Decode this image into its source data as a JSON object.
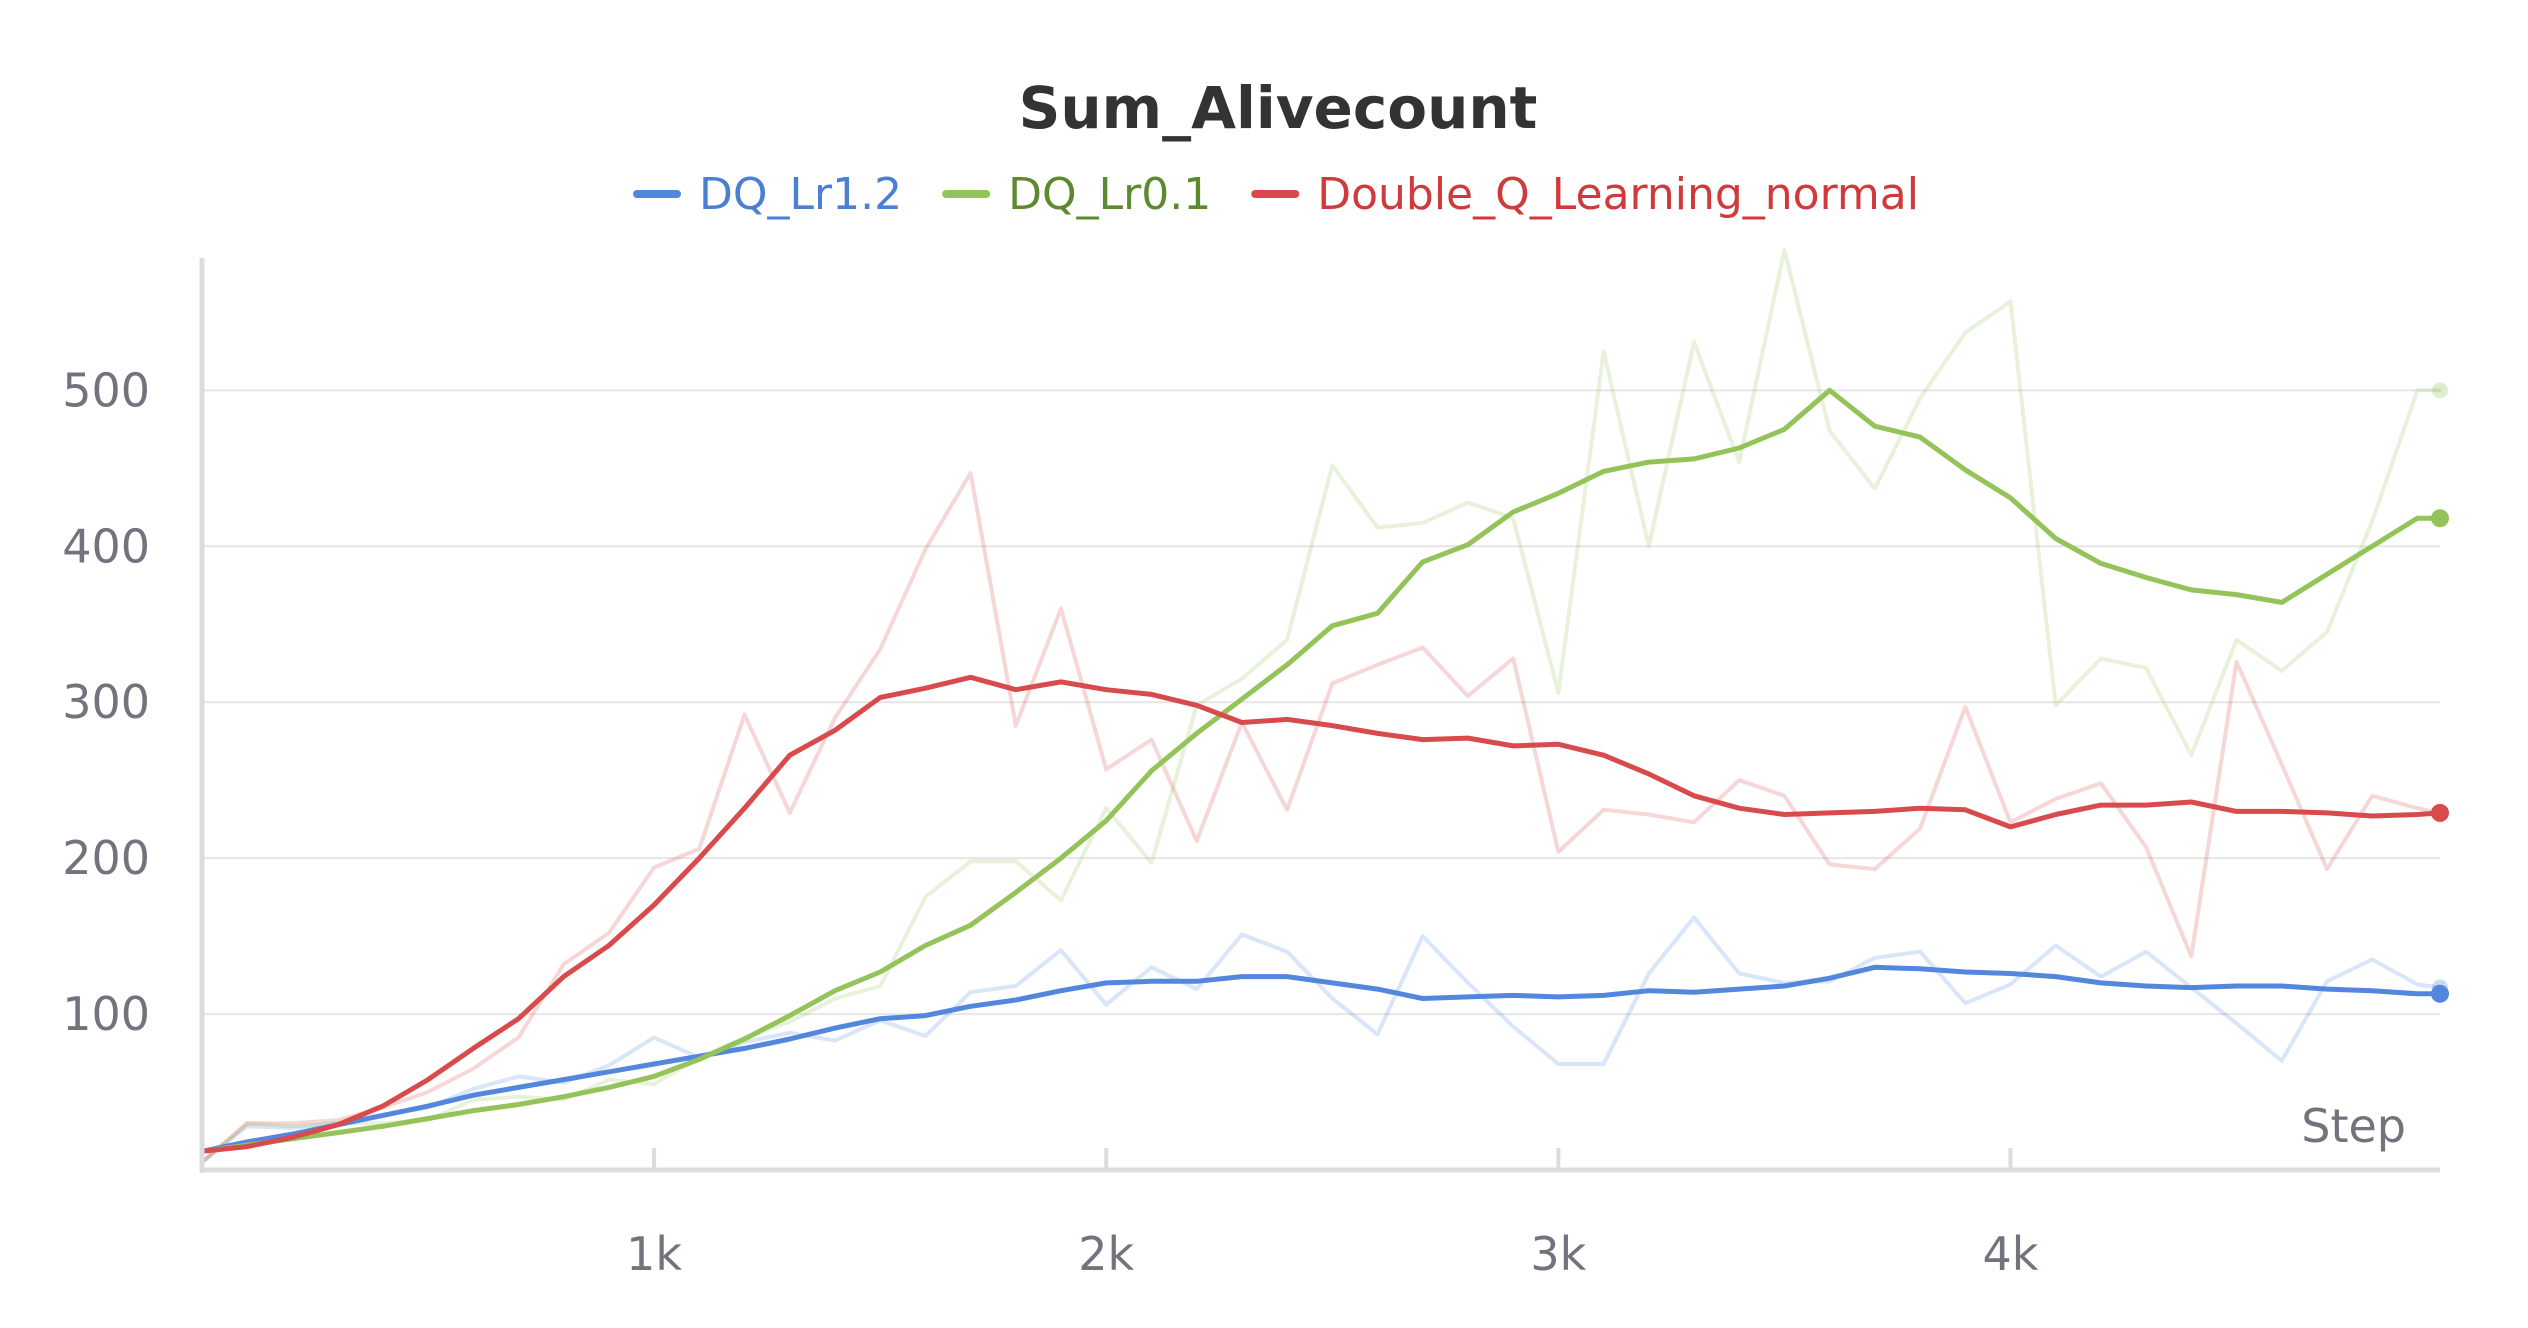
{
  "chart_data": {
    "type": "line",
    "title": "Sum_Alivecount",
    "xlabel": "Step",
    "ylabel": "",
    "xlim": [
      0,
      4950
    ],
    "ylim": [
      0,
      590
    ],
    "grid": true,
    "legend_position": "top-center",
    "x_ticks": [
      1000,
      2000,
      3000,
      4000
    ],
    "x_tick_labels": [
      "1k",
      "2k",
      "3k",
      "4k"
    ],
    "y_ticks": [
      100,
      200,
      300,
      400,
      500
    ],
    "y_tick_labels": [
      "100",
      "200",
      "300",
      "400",
      "500"
    ],
    "x": [
      0,
      100,
      200,
      300,
      400,
      500,
      600,
      700,
      800,
      900,
      1000,
      1100,
      1200,
      1300,
      1400,
      1500,
      1600,
      1700,
      1800,
      1900,
      2000,
      2100,
      2200,
      2300,
      2400,
      2500,
      2600,
      2700,
      2800,
      2900,
      3000,
      3100,
      3200,
      3300,
      3400,
      3500,
      3600,
      3700,
      3800,
      3900,
      4000,
      4100,
      4200,
      4300,
      4400,
      4500,
      4600,
      4700,
      4800,
      4900,
      4950
    ],
    "series": [
      {
        "name": "DQ_Lr1.2",
        "color": "#5387dd",
        "legend_text_color": "#4a7fd4",
        "smoothed": [
          12,
          18,
          23,
          29,
          35,
          41,
          48,
          53,
          58,
          63,
          68,
          73,
          78,
          84,
          91,
          97,
          99,
          105,
          109,
          115,
          120,
          121,
          121,
          124,
          124,
          120,
          116,
          110,
          111,
          112,
          111,
          112,
          115,
          114,
          116,
          118,
          123,
          130,
          129,
          127,
          126,
          124,
          120,
          118,
          117,
          118,
          118,
          116,
          115,
          113,
          113
        ],
        "raw": [
          5,
          28,
          27,
          30,
          35,
          40,
          52,
          60,
          56,
          67,
          85,
          72,
          82,
          88,
          83,
          96,
          86,
          114,
          118,
          141,
          106,
          130,
          116,
          151,
          140,
          110,
          87,
          150,
          120,
          92,
          68,
          68,
          126,
          162,
          126,
          120,
          121,
          136,
          140,
          107,
          119,
          144,
          124,
          140,
          117,
          94,
          70,
          121,
          135,
          119,
          117
        ]
      },
      {
        "name": "DQ_Lr0.1",
        "color": "#94c35a",
        "legend_text_color": "#5c8a2e",
        "smoothed": [
          12,
          16,
          20,
          24,
          28,
          33,
          38,
          42,
          47,
          53,
          60,
          71,
          84,
          99,
          115,
          127,
          144,
          157,
          178,
          200,
          224,
          256,
          280,
          302,
          324,
          349,
          357,
          390,
          401,
          422,
          434,
          448,
          454,
          456,
          463,
          475,
          500,
          477,
          470,
          449,
          431,
          405,
          389,
          380,
          372,
          369,
          364,
          382,
          400,
          418,
          418
        ],
        "raw": [
          5,
          30,
          28,
          30,
          30,
          32,
          45,
          47,
          45,
          58,
          55,
          72,
          85,
          95,
          110,
          118,
          175,
          198,
          198,
          173,
          232,
          197,
          298,
          315,
          340,
          452,
          412,
          415,
          428,
          418,
          306,
          525,
          400,
          531,
          454,
          590,
          474,
          437,
          495,
          537,
          557,
          298,
          328,
          322,
          266,
          340,
          320,
          345,
          416,
          500,
          500
        ]
      },
      {
        "name": "Double_Q_Learning_normal",
        "color": "#d84a4b",
        "legend_text_color": "#d03a3b",
        "smoothed": [
          12,
          15,
          21,
          29,
          41,
          58,
          78,
          97,
          124,
          144,
          170,
          200,
          232,
          266,
          282,
          303,
          309,
          316,
          308,
          313,
          308,
          305,
          298,
          287,
          289,
          285,
          280,
          276,
          277,
          272,
          273,
          266,
          254,
          240,
          232,
          228,
          229,
          230,
          232,
          231,
          220,
          228,
          234,
          234,
          236,
          230,
          230,
          229,
          227,
          228,
          229
        ],
        "raw": [
          5,
          30,
          30,
          32,
          40,
          50,
          65,
          85,
          132,
          152,
          194,
          206,
          292,
          229,
          290,
          334,
          398,
          447,
          285,
          360,
          257,
          276,
          211,
          287,
          231,
          312,
          324,
          335,
          304,
          328,
          204,
          231,
          228,
          223,
          250,
          240,
          196,
          193,
          219,
          297,
          223,
          238,
          248,
          207,
          137,
          326,
          260,
          193,
          240,
          232,
          229
        ]
      }
    ]
  }
}
